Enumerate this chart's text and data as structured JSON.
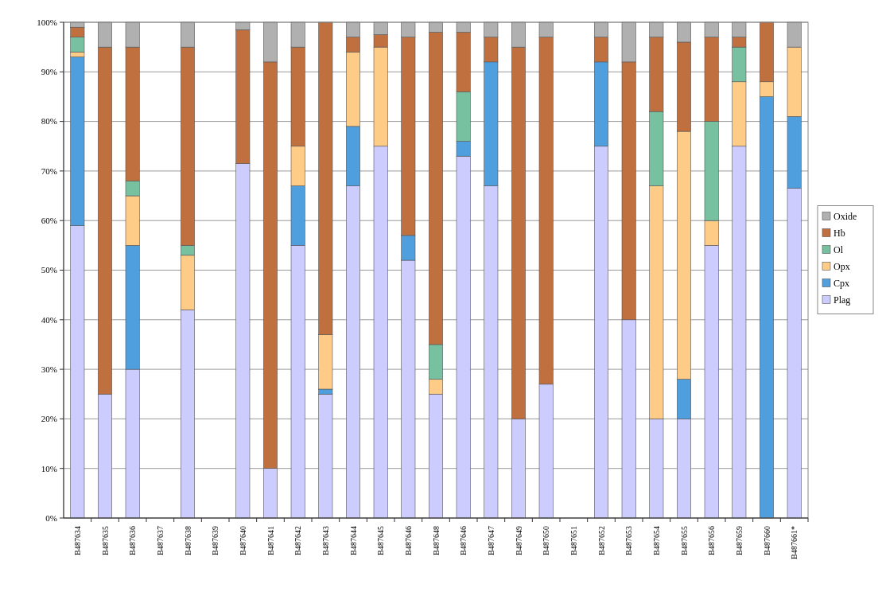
{
  "chart_data": {
    "type": "bar",
    "stacked": true,
    "categories": [
      "B487634",
      "B487635",
      "B487636",
      "B487637",
      "B487638",
      "B487639",
      "B487640",
      "B487641",
      "B487642",
      "B487643",
      "B487644",
      "B487645",
      "B487646",
      "B487648",
      "B487646",
      "B487647",
      "B487649",
      "B487650",
      "B487651",
      "B487652",
      "B487653",
      "B487654",
      "B487655",
      "B487656",
      "B487659",
      "B487660",
      "B487661*"
    ],
    "series": [
      {
        "name": "Plag",
        "color": "#ccccff",
        "values": [
          59,
          25,
          30,
          null,
          42,
          null,
          71.5,
          10,
          55,
          25,
          67,
          75,
          52,
          25,
          73,
          67,
          20,
          27,
          null,
          75,
          40,
          20,
          20,
          55,
          75,
          0,
          66.5
        ]
      },
      {
        "name": "Cpx",
        "color": "#4f9fdf",
        "values": [
          34,
          null,
          25,
          null,
          null,
          null,
          null,
          null,
          12,
          1,
          12,
          null,
          5,
          null,
          3,
          25,
          null,
          null,
          null,
          17,
          null,
          null,
          8,
          null,
          null,
          85,
          14.5
        ]
      },
      {
        "name": "Opx",
        "color": "#ffcc88",
        "values": [
          1,
          null,
          10,
          null,
          11,
          null,
          null,
          null,
          8,
          11,
          15,
          20,
          null,
          3,
          null,
          null,
          null,
          null,
          null,
          null,
          null,
          47,
          50,
          5,
          13,
          3,
          14
        ]
      },
      {
        "name": "Ol",
        "color": "#77c0a0",
        "values": [
          3,
          null,
          3,
          null,
          2,
          null,
          null,
          null,
          null,
          null,
          null,
          null,
          null,
          7,
          10,
          null,
          null,
          null,
          null,
          null,
          null,
          15,
          null,
          20,
          7,
          null,
          null
        ]
      },
      {
        "name": "Hb",
        "color": "#c0703f",
        "values": [
          2,
          70,
          27,
          null,
          40,
          null,
          27,
          82,
          20,
          63,
          3,
          2.5,
          40,
          63,
          12,
          5,
          75,
          70,
          null,
          5,
          52,
          15,
          18,
          17,
          2,
          12,
          null
        ]
      },
      {
        "name": "Oxide",
        "color": "#b0b0b0",
        "values": [
          1,
          5,
          5,
          null,
          5,
          null,
          1.5,
          8,
          5,
          0,
          3,
          2.5,
          3,
          2,
          2,
          3,
          5,
          3,
          null,
          3,
          8,
          3,
          4,
          3,
          3,
          0,
          5
        ]
      }
    ],
    "ylim": [
      0,
      100
    ],
    "yticks": [
      {
        "value": 0,
        "label": "0%"
      },
      {
        "value": 10,
        "label": "10%"
      },
      {
        "value": 20,
        "label": "20%"
      },
      {
        "value": 30,
        "label": "30%"
      },
      {
        "value": 40,
        "label": "40%"
      },
      {
        "value": 50,
        "label": "50%"
      },
      {
        "value": 60,
        "label": "60%"
      },
      {
        "value": 70,
        "label": "70%"
      },
      {
        "value": 80,
        "label": "80%"
      },
      {
        "value": 90,
        "label": "90%"
      },
      {
        "value": 100,
        "label": "100%"
      }
    ],
    "grid": "y",
    "legend": "right"
  }
}
